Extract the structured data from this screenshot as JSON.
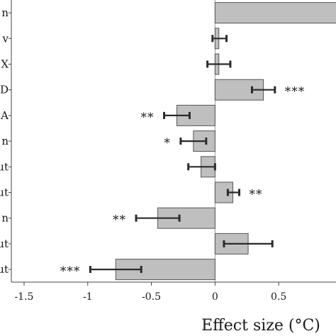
{
  "chart_data": {
    "type": "bar",
    "orientation": "horizontal",
    "categories": [
      "n",
      "v",
      "X",
      "D",
      "A",
      "n",
      "ut",
      "ut",
      "n",
      "ut",
      "ut"
    ],
    "values": [
      1.05,
      0.03,
      0.03,
      0.38,
      -0.3,
      -0.17,
      -0.11,
      0.14,
      -0.45,
      0.26,
      -0.78
    ],
    "error_low": [
      null,
      -0.02,
      -0.06,
      0.29,
      -0.4,
      -0.27,
      -0.21,
      0.1,
      -0.62,
      0.07,
      -0.98
    ],
    "error_high": [
      null,
      0.09,
      0.12,
      0.47,
      -0.2,
      -0.07,
      0.0,
      0.19,
      -0.28,
      0.45,
      -0.58
    ],
    "significance": [
      "",
      "",
      "",
      "***",
      "**",
      "*",
      "",
      "**",
      "**",
      "",
      "***"
    ],
    "xlabel": "Effect size (°C)",
    "xlim": [
      -1.6,
      0.95
    ],
    "xticks": [
      -1.5,
      -1,
      -0.5,
      0,
      0.5
    ],
    "xtick_labels": [
      "-1.5",
      "-1",
      "-0.5",
      "0",
      "0.5"
    ],
    "bar_color": "#bfbfbf",
    "bar_edge_color": "#555555",
    "error_bar_color": "#2b2b2b",
    "grid": false,
    "legend": "none"
  }
}
